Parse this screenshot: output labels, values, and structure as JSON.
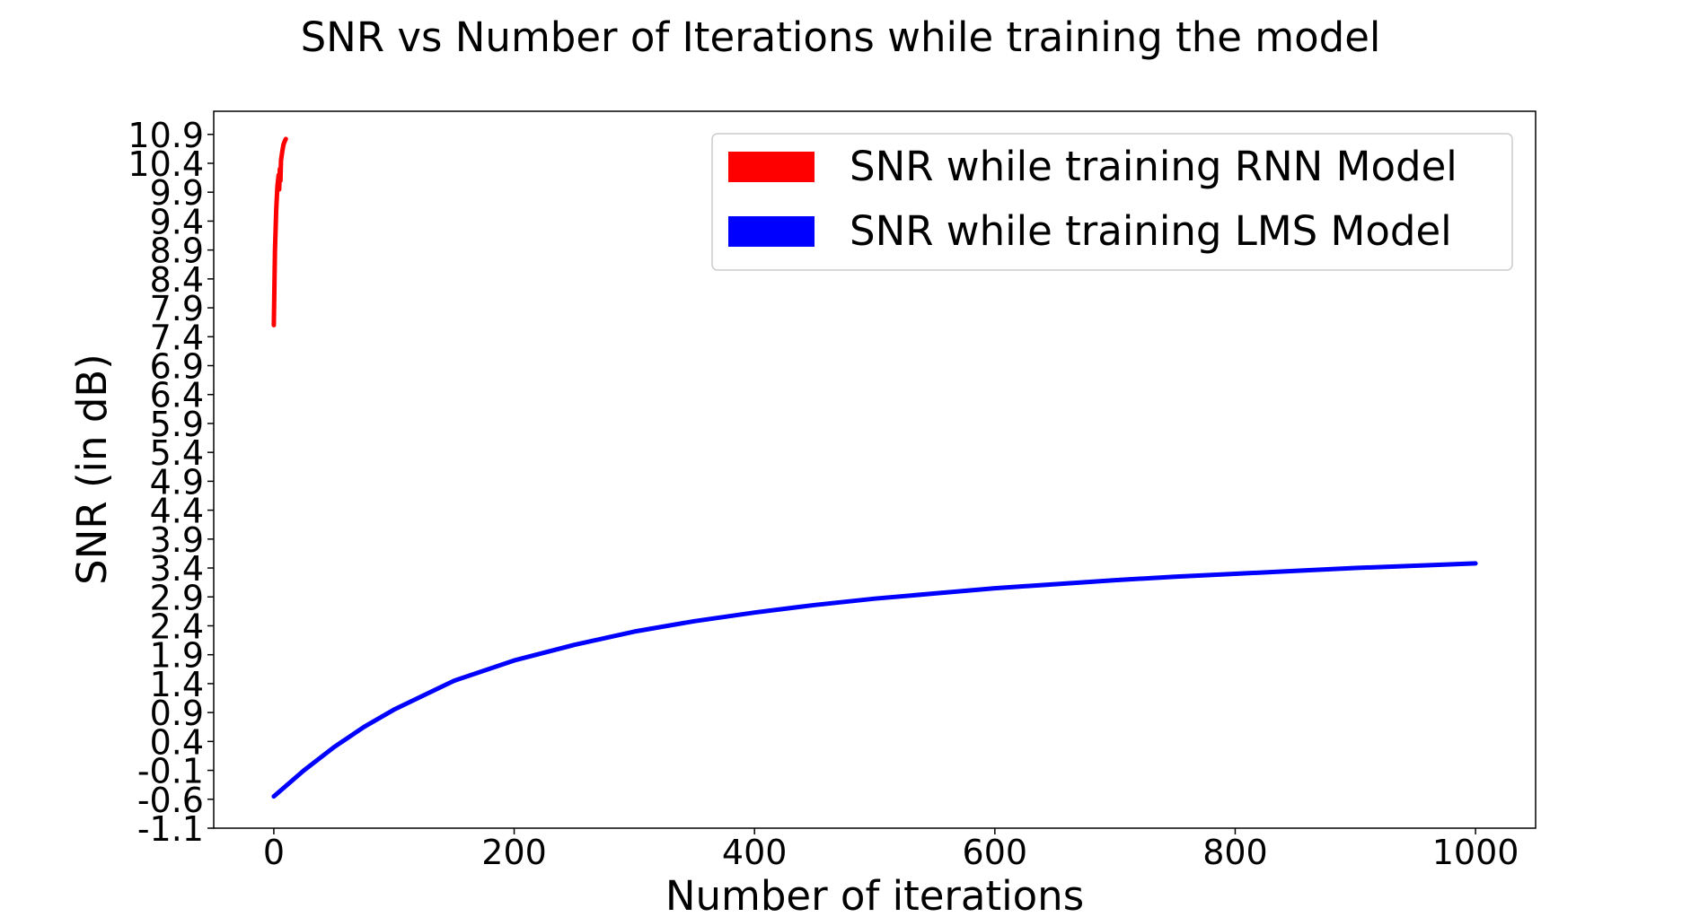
{
  "chart_data": {
    "type": "line",
    "title": "SNR vs Number of Iterations while training the model",
    "xlabel": "Number of iterations",
    "ylabel": "SNR (in dB)",
    "xlim": [
      -50,
      1050
    ],
    "ylim": [
      -1.1,
      11.3
    ],
    "x_ticks": [
      0,
      200,
      400,
      600,
      800,
      1000
    ],
    "y_ticks": [
      -1.1,
      -0.6,
      -0.1,
      0.4,
      0.9,
      1.4,
      1.9,
      2.4,
      2.9,
      3.4,
      3.9,
      4.4,
      4.9,
      5.4,
      5.9,
      6.4,
      6.9,
      7.4,
      7.9,
      8.4,
      8.9,
      9.4,
      9.9,
      10.4,
      10.9
    ],
    "grid": false,
    "legend_position": "top-right",
    "series": [
      {
        "name": "SNR while training RNN Model",
        "color": "#ff0000",
        "x": [
          0,
          1,
          2,
          3,
          4,
          4.5,
          5,
          5.5,
          6,
          7,
          8,
          9,
          10
        ],
        "y": [
          7.6,
          8.9,
          9.6,
          10.0,
          10.2,
          9.95,
          10.3,
          10.1,
          10.45,
          10.6,
          10.72,
          10.78,
          10.82
        ]
      },
      {
        "name": "SNR while training LMS Model",
        "color": "#0000ff",
        "x": [
          0,
          25,
          50,
          75,
          100,
          150,
          200,
          250,
          300,
          350,
          400,
          450,
          500,
          550,
          600,
          650,
          700,
          750,
          800,
          850,
          900,
          950,
          1000
        ],
        "y": [
          -0.55,
          -0.1,
          0.3,
          0.65,
          0.95,
          1.45,
          1.8,
          2.07,
          2.3,
          2.48,
          2.63,
          2.76,
          2.87,
          2.96,
          3.05,
          3.12,
          3.19,
          3.25,
          3.3,
          3.35,
          3.4,
          3.44,
          3.48
        ]
      }
    ]
  }
}
